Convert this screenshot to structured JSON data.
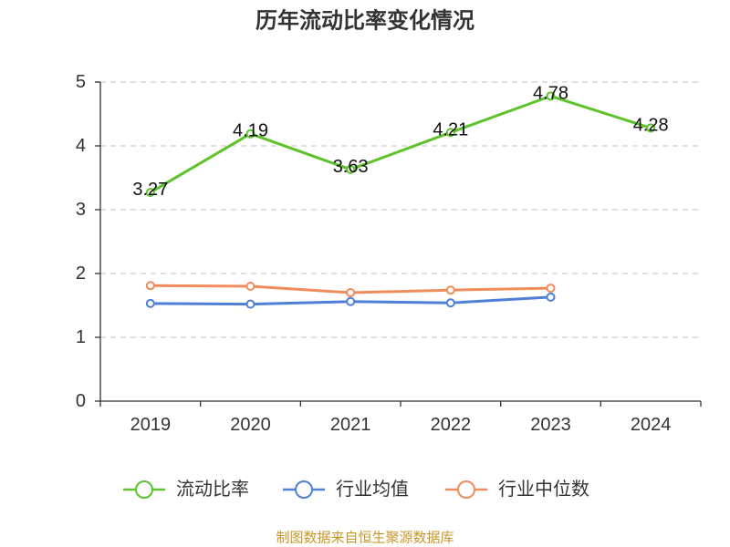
{
  "chart_data": {
    "type": "line",
    "title": "历年流动比率变化情况",
    "categories": [
      "2019",
      "2020",
      "2021",
      "2022",
      "2023",
      "2024"
    ],
    "ylim": [
      0,
      5
    ],
    "yticks": [
      0,
      1,
      2,
      3,
      4,
      5
    ],
    "grid": true,
    "legend_position": "bottom",
    "series": [
      {
        "name": "流动比率",
        "color": "#5ec22a",
        "values": [
          3.27,
          4.19,
          3.63,
          4.21,
          4.78,
          4.28
        ],
        "show_labels": true
      },
      {
        "name": "行业均值",
        "color": "#4f7fd6",
        "values": [
          1.53,
          1.52,
          1.56,
          1.54,
          1.63,
          null
        ],
        "show_labels": false
      },
      {
        "name": "行业中位数",
        "color": "#f08c5c",
        "values": [
          1.81,
          1.8,
          1.7,
          1.74,
          1.77,
          null
        ],
        "show_labels": false
      }
    ]
  },
  "source_note": "制图数据来自恒生聚源数据库",
  "colors": {
    "title": "#333333",
    "axis": "#333333",
    "grid": "#cccccc",
    "source_note": "#c8962a"
  }
}
